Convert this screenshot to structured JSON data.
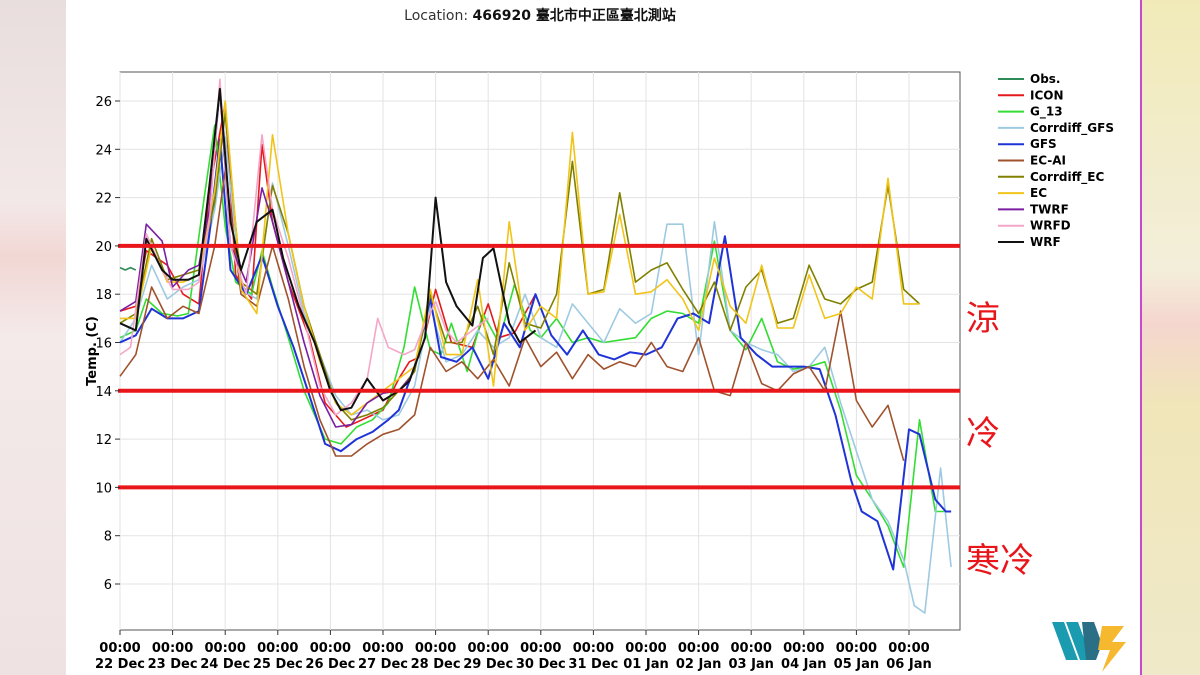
{
  "chart_data": {
    "type": "line",
    "title_prefix": "Location: ",
    "title_value": "466920 臺北市中正區臺北測站",
    "ylabel": "Temp. (C)",
    "xlabel": "",
    "ylim": [
      4,
      27
    ],
    "xlim": [
      0,
      15.8
    ],
    "yticks": [
      6,
      8,
      10,
      12,
      14,
      16,
      18,
      20,
      22,
      24,
      26
    ],
    "grid": true,
    "legend_position": "outside-right",
    "x_tick_labels": [
      {
        "x": 0,
        "time": "00:00",
        "date": "22 Dec"
      },
      {
        "x": 1,
        "time": "00:00",
        "date": "23 Dec"
      },
      {
        "x": 2,
        "time": "00:00",
        "date": "24 Dec"
      },
      {
        "x": 3,
        "time": "00:00",
        "date": "25 Dec"
      },
      {
        "x": 4,
        "time": "00:00",
        "date": "26 Dec"
      },
      {
        "x": 5,
        "time": "00:00",
        "date": "27 Dec"
      },
      {
        "x": 6,
        "time": "00:00",
        "date": "28 Dec"
      },
      {
        "x": 7,
        "time": "00:00",
        "date": "29 Dec"
      },
      {
        "x": 8,
        "time": "00:00",
        "date": "30 Dec"
      },
      {
        "x": 9,
        "time": "00:00",
        "date": "31 Dec"
      },
      {
        "x": 10,
        "time": "00:00",
        "date": "01 Jan"
      },
      {
        "x": 11,
        "time": "00:00",
        "date": "02 Jan"
      },
      {
        "x": 12,
        "time": "00:00",
        "date": "03 Jan"
      },
      {
        "x": 13,
        "time": "00:00",
        "date": "04 Jan"
      },
      {
        "x": 14,
        "time": "00:00",
        "date": "05 Jan"
      },
      {
        "x": 15,
        "time": "00:00",
        "date": "06 Jan"
      }
    ],
    "thresholds": [
      {
        "value": 20,
        "label": "涼",
        "color": "#e8161b"
      },
      {
        "value": 14,
        "label": "冷",
        "color": "#e8161b"
      },
      {
        "value": 10,
        "label": "寒冷",
        "color": "#e8161b"
      }
    ],
    "series": [
      {
        "name": "Obs.",
        "color": "#2e8b57",
        "x": [
          0,
          0.1,
          0.2,
          0.3
        ],
        "y": [
          19.1,
          19.0,
          19.1,
          19.0
        ]
      },
      {
        "name": "ICON",
        "color": "#e41a1c",
        "x": [
          0,
          0.3,
          0.5,
          0.9,
          1.2,
          1.5,
          1.7,
          2.0,
          2.2,
          2.5,
          2.7,
          2.9,
          3.2,
          3.6,
          3.9,
          4.3,
          4.6,
          5.0,
          5.3,
          5.5,
          5.7,
          6.0,
          6.3,
          6.7,
          7.0,
          7.2,
          7.5,
          7.9
        ],
        "y": [
          17.3,
          17.5,
          19.8,
          19.2,
          18.0,
          17.6,
          22.3,
          25.9,
          18.8,
          17.8,
          24.2,
          21.0,
          18.5,
          16.2,
          13.5,
          12.5,
          12.8,
          13.2,
          14.5,
          15.2,
          15.4,
          18.2,
          16.0,
          15.8,
          17.6,
          16.2,
          16.4,
          18.0
        ]
      },
      {
        "name": "G_13",
        "color": "#33dd33",
        "x": [
          0,
          0.3,
          0.5,
          0.8,
          1.1,
          1.3,
          1.6,
          1.8,
          2.0,
          2.2,
          2.5,
          2.7,
          2.9,
          3.2,
          3.5,
          3.9,
          4.2,
          4.5,
          4.8,
          5.1,
          5.4,
          5.6,
          5.9,
          6.1,
          6.3,
          6.6,
          6.9,
          7.2,
          7.5,
          7.8,
          8.0,
          8.3,
          8.6,
          8.9,
          9.2,
          9.5,
          9.8,
          10.1,
          10.4,
          10.7,
          11.0,
          11.3,
          11.6,
          11.9,
          12.2,
          12.5,
          12.8,
          13.1,
          13.4,
          13.7,
          14.0,
          14.3,
          14.6,
          14.9,
          15.2,
          15.5,
          15.7,
          15.8
        ],
        "y": [
          16.2,
          16.5,
          17.8,
          17.2,
          17.1,
          17.2,
          22.0,
          25.0,
          20.8,
          18.5,
          18.0,
          19.8,
          18.3,
          16.2,
          14.0,
          12.0,
          11.8,
          12.5,
          12.8,
          13.5,
          15.8,
          18.3,
          15.7,
          15.5,
          16.8,
          14.8,
          17.2,
          16.0,
          18.4,
          16.5,
          16.2,
          17.0,
          16.0,
          16.2,
          16.0,
          16.1,
          16.2,
          17.0,
          17.3,
          17.2,
          16.8,
          20.2,
          16.5,
          15.7,
          17.0,
          15.2,
          14.9,
          15.0,
          15.2,
          13.2,
          10.5,
          9.5,
          8.4,
          6.7,
          12.8,
          9.0,
          9.0,
          9.0
        ]
      },
      {
        "name": "Corrdiff_GFS",
        "color": "#9ecae1",
        "x": [
          0,
          0.3,
          0.6,
          0.9,
          1.2,
          1.5,
          1.8,
          2.0,
          2.3,
          2.6,
          2.9,
          3.2,
          3.5,
          3.8,
          4.1,
          4.4,
          4.7,
          5.0,
          5.3,
          5.6,
          5.9,
          6.2,
          6.5,
          6.8,
          7.1,
          7.4,
          7.7,
          8.0,
          8.3,
          8.6,
          8.9,
          9.2,
          9.5,
          9.8,
          10.1,
          10.4,
          10.7,
          11.0,
          11.3,
          11.6,
          11.9,
          12.2,
          12.5,
          12.8,
          13.1,
          13.4,
          13.7,
          14.0,
          14.3,
          14.6,
          14.9,
          15.1,
          15.3,
          15.6,
          15.8
        ],
        "y": [
          16.0,
          17.0,
          19.2,
          17.8,
          18.3,
          18.6,
          21.5,
          24.5,
          18.2,
          17.8,
          22.6,
          20.0,
          17.2,
          15.5,
          13.8,
          13.0,
          13.2,
          12.8,
          13.0,
          14.2,
          17.5,
          15.2,
          15.5,
          16.5,
          15.8,
          16.2,
          18.0,
          16.2,
          15.8,
          17.6,
          16.8,
          16.0,
          17.4,
          16.8,
          17.2,
          20.9,
          20.9,
          15.5,
          21.0,
          16.5,
          16.0,
          15.7,
          15.5,
          14.8,
          15.0,
          15.8,
          13.5,
          11.5,
          9.5,
          8.6,
          7.0,
          5.1,
          4.8,
          10.8,
          6.7
        ]
      },
      {
        "name": "GFS",
        "color": "#1f33d6",
        "x": [
          0,
          0.3,
          0.6,
          0.9,
          1.2,
          1.5,
          1.7,
          1.9,
          2.1,
          2.4,
          2.7,
          3.0,
          3.3,
          3.6,
          3.9,
          4.2,
          4.5,
          4.8,
          5.1,
          5.3,
          5.6,
          5.9,
          6.1,
          6.4,
          6.7,
          7.0,
          7.3,
          7.6,
          7.9,
          8.2,
          8.5,
          8.8,
          9.1,
          9.4,
          9.7,
          10.0,
          10.3,
          10.6,
          10.9,
          11.2,
          11.5,
          11.8,
          12.1,
          12.4,
          12.7,
          13.0,
          13.3,
          13.6,
          13.9,
          14.1,
          14.4,
          14.7,
          15.0,
          15.2,
          15.5,
          15.7,
          15.8
        ],
        "y": [
          16.0,
          16.3,
          17.4,
          17.0,
          17.0,
          17.3,
          20.5,
          24.4,
          19.0,
          18.0,
          19.6,
          17.5,
          15.8,
          13.8,
          11.8,
          11.5,
          12.0,
          12.3,
          12.8,
          13.2,
          15.0,
          17.8,
          15.4,
          15.2,
          15.8,
          14.5,
          16.8,
          15.8,
          18.0,
          16.3,
          15.5,
          16.5,
          15.5,
          15.3,
          15.6,
          15.5,
          15.8,
          17.0,
          17.2,
          16.8,
          20.4,
          16.2,
          15.5,
          15.0,
          15.0,
          15.0,
          14.9,
          13.0,
          10.3,
          9.0,
          8.6,
          6.6,
          12.4,
          12.2,
          9.5,
          9.0,
          9.0
        ]
      },
      {
        "name": "EC-AI",
        "color": "#a0522d",
        "x": [
          0,
          0.3,
          0.6,
          0.9,
          1.2,
          1.5,
          1.8,
          2.0,
          2.3,
          2.6,
          2.9,
          3.2,
          3.5,
          3.8,
          4.1,
          4.4,
          4.7,
          5.0,
          5.3,
          5.6,
          5.9,
          6.2,
          6.5,
          6.8,
          7.1,
          7.4,
          7.7,
          8.0,
          8.3,
          8.6,
          8.9,
          9.2,
          9.5,
          9.8,
          10.1,
          10.4,
          10.7,
          11.0,
          11.3,
          11.6,
          11.9,
          12.2,
          12.5,
          12.8,
          13.1,
          13.4,
          13.7,
          14.0,
          14.3,
          14.6,
          14.9
        ],
        "y": [
          14.6,
          15.5,
          18.3,
          17.0,
          17.5,
          17.2,
          20.0,
          23.1,
          18.0,
          17.5,
          20.0,
          17.8,
          15.0,
          12.8,
          11.3,
          11.3,
          11.8,
          12.2,
          12.4,
          13.0,
          15.8,
          14.8,
          15.2,
          14.5,
          15.3,
          14.2,
          16.2,
          15.0,
          15.6,
          14.5,
          15.5,
          14.9,
          15.2,
          15.0,
          16.0,
          15.0,
          14.8,
          16.2,
          14.0,
          13.8,
          16.0,
          14.3,
          14.0,
          14.7,
          15.0,
          14.0,
          17.3,
          13.6,
          12.5,
          13.4,
          11.1
        ]
      },
      {
        "name": "Corrdiff_EC",
        "color": "#808000",
        "x": [
          0,
          0.3,
          0.6,
          0.9,
          1.2,
          1.5,
          1.8,
          2.0,
          2.3,
          2.6,
          2.9,
          3.2,
          3.5,
          3.8,
          4.1,
          4.4,
          4.7,
          5.0,
          5.3,
          5.6,
          5.9,
          6.2,
          6.5,
          6.8,
          7.1,
          7.4,
          7.7,
          8.0,
          8.3,
          8.6,
          8.9,
          9.2,
          9.5,
          9.8,
          10.1,
          10.4,
          10.7,
          11.0,
          11.3,
          11.6,
          11.9,
          12.2,
          12.5,
          12.8,
          13.1,
          13.4,
          13.7,
          14.0,
          14.3,
          14.6,
          14.9,
          15.2
        ],
        "y": [
          16.8,
          17.2,
          20.3,
          18.6,
          18.8,
          19.0,
          21.8,
          25.5,
          18.5,
          18.0,
          22.5,
          20.5,
          17.5,
          15.5,
          13.5,
          12.8,
          13.0,
          13.3,
          14.0,
          14.8,
          18.0,
          16.0,
          16.0,
          17.5,
          15.5,
          19.3,
          16.8,
          16.6,
          18.0,
          23.5,
          18.0,
          18.2,
          22.2,
          18.5,
          19.0,
          19.3,
          18.2,
          17.2,
          18.5,
          16.5,
          18.3,
          19.0,
          16.8,
          17.0,
          19.2,
          17.8,
          17.6,
          18.2,
          18.5,
          22.5,
          18.2,
          17.6
        ]
      },
      {
        "name": "EC",
        "color": "#f0c419",
        "x": [
          0,
          0.3,
          0.6,
          0.9,
          1.2,
          1.5,
          1.8,
          2.0,
          2.3,
          2.6,
          2.9,
          3.2,
          3.5,
          3.8,
          4.1,
          4.4,
          4.7,
          5.0,
          5.3,
          5.6,
          5.9,
          6.2,
          6.5,
          6.8,
          7.1,
          7.4,
          7.7,
          8.0,
          8.3,
          8.6,
          8.9,
          9.2,
          9.5,
          9.8,
          10.1,
          10.4,
          10.7,
          11.0,
          11.3,
          11.6,
          11.9,
          12.2,
          12.5,
          12.8,
          13.1,
          13.4,
          13.7,
          14.0,
          14.3,
          14.6,
          14.9,
          15.2
        ],
        "y": [
          17.0,
          17.0,
          20.0,
          18.5,
          18.5,
          18.8,
          22.3,
          26.0,
          18.2,
          17.2,
          24.6,
          20.5,
          17.5,
          15.2,
          13.5,
          13.0,
          13.5,
          14.0,
          14.5,
          15.0,
          18.2,
          15.5,
          15.5,
          18.6,
          14.2,
          21.0,
          16.5,
          17.5,
          17.0,
          24.7,
          18.0,
          18.1,
          21.3,
          18.0,
          18.1,
          18.6,
          17.8,
          16.5,
          19.5,
          17.5,
          16.8,
          19.2,
          16.6,
          16.6,
          18.8,
          17.0,
          17.2,
          18.3,
          17.8,
          22.8,
          17.6,
          17.6
        ]
      },
      {
        "name": "TWRF",
        "color": "#7b1fa2",
        "x": [
          0,
          0.3,
          0.5,
          0.8,
          1.0,
          1.3,
          1.5,
          1.7,
          1.9,
          2.1,
          2.4,
          2.7,
          2.9,
          3.2,
          3.5,
          3.8,
          4.1,
          4.4,
          4.7,
          5.0,
          5.3,
          5.5
        ],
        "y": [
          17.3,
          17.7,
          20.9,
          20.2,
          18.3,
          19.0,
          19.2,
          21.5,
          26.5,
          20.0,
          18.5,
          22.4,
          21.0,
          18.5,
          16.0,
          13.8,
          12.5,
          12.6,
          13.5,
          13.9,
          14.0,
          14.5
        ]
      },
      {
        "name": "WRFD",
        "color": "#f4a6c8",
        "x": [
          0,
          0.2,
          0.5,
          0.8,
          1.0,
          1.3,
          1.5,
          1.7,
          1.9,
          2.1,
          2.4,
          2.7,
          2.9,
          3.2,
          3.5,
          3.8,
          4.1,
          4.4,
          4.7,
          4.9,
          5.1,
          5.4,
          5.6,
          5.8,
          6.0,
          6.2,
          6.4,
          6.7,
          7.0
        ],
        "y": [
          15.5,
          15.8,
          20.5,
          19.0,
          18.2,
          18.2,
          18.5,
          21.0,
          26.9,
          20.0,
          18.0,
          24.6,
          21.5,
          19.5,
          17.0,
          14.2,
          13.0,
          13.5,
          14.5,
          17.0,
          15.8,
          15.5,
          15.7,
          16.8,
          17.7,
          16.5,
          16.0,
          16.5,
          17.0
        ]
      },
      {
        "name": "WRF",
        "color": "#111111",
        "x": [
          0,
          0.3,
          0.5,
          0.8,
          1.0,
          1.3,
          1.5,
          1.7,
          1.9,
          2.1,
          2.3,
          2.6,
          2.9,
          3.1,
          3.4,
          3.7,
          4.0,
          4.2,
          4.4,
          4.7,
          5.0,
          5.3,
          5.5,
          5.8,
          6.0,
          6.2,
          6.4,
          6.7,
          6.9,
          7.1,
          7.4,
          7.6,
          7.9
        ],
        "y": [
          16.8,
          16.5,
          20.3,
          19.0,
          18.6,
          18.6,
          18.8,
          22.5,
          26.5,
          21.0,
          19.0,
          21.0,
          21.5,
          19.5,
          17.5,
          16.0,
          14.0,
          13.2,
          13.3,
          14.5,
          13.6,
          14.0,
          14.4,
          16.2,
          22.0,
          18.5,
          17.5,
          16.7,
          19.5,
          19.9,
          16.8,
          16.0,
          16.5
        ]
      }
    ]
  }
}
